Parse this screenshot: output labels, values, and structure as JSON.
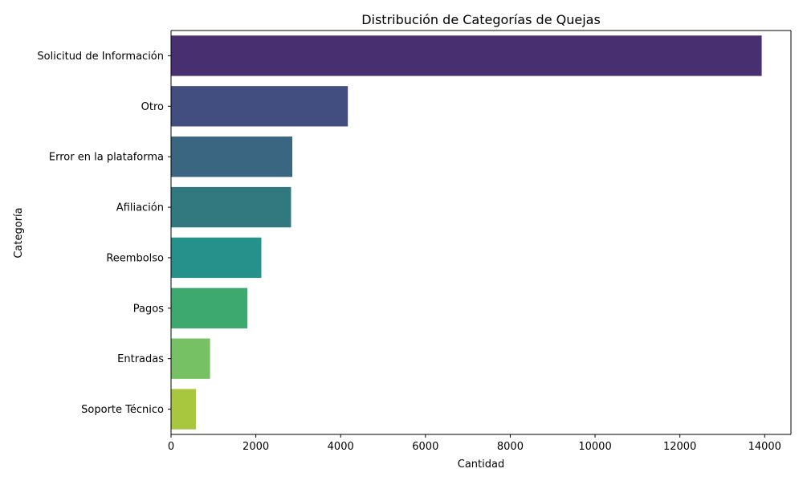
{
  "chart_data": {
    "type": "bar",
    "orientation": "horizontal",
    "title": "Distribución de Categorías de Quejas",
    "xlabel": "Cantidad",
    "ylabel": "Categoría",
    "categories": [
      "Solicitud de Información",
      "Otro",
      "Error en la plataforma",
      "Afiliación",
      "Reembolso",
      "Pagos",
      "Entradas",
      "Soporte Técnico"
    ],
    "values": [
      13930,
      4170,
      2860,
      2830,
      2130,
      1800,
      920,
      590
    ],
    "colors": [
      "#482f70",
      "#434e80",
      "#3b6681",
      "#31787f",
      "#26918a",
      "#3ea96e",
      "#75c163",
      "#a8c63e"
    ],
    "xlim": [
      0,
      14620
    ],
    "xticks": [
      0,
      2000,
      4000,
      6000,
      8000,
      10000,
      12000,
      14000
    ],
    "grid": false,
    "legend": "none"
  }
}
